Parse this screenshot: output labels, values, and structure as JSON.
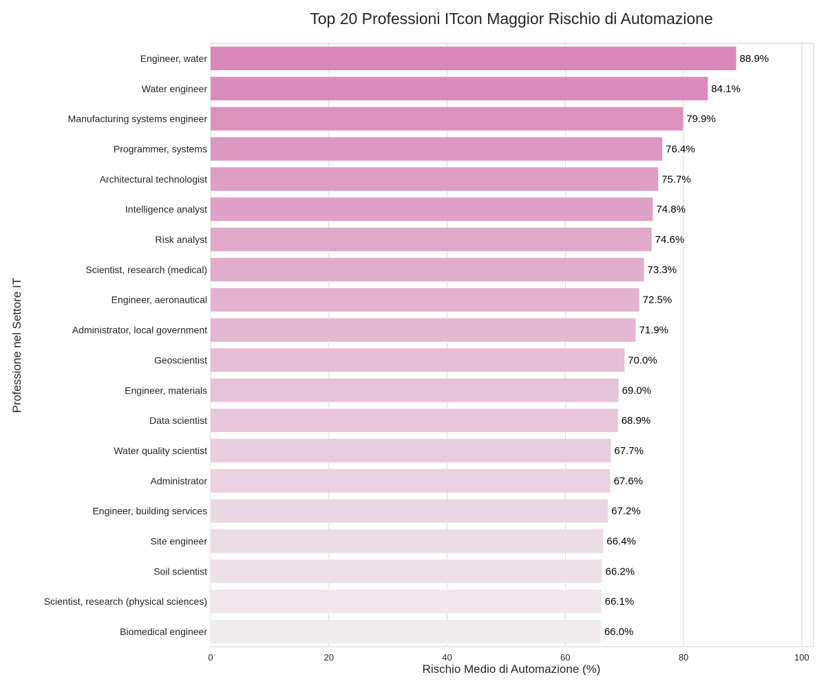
{
  "chart_data": {
    "type": "bar",
    "orientation": "horizontal",
    "title": "Top 20 Professioni ITcon Maggior Rischio di Automazione",
    "xlabel": "Rischio Medio di Automazione (%)",
    "ylabel": "Professione nel Settore IT",
    "xlim": [
      0,
      102
    ],
    "xticks": [
      "0",
      "20",
      "40",
      "60",
      "80",
      "100"
    ],
    "grid": true,
    "categories": [
      "Engineer, water",
      "Water engineer",
      "Manufacturing systems engineer",
      "Programmer, systems",
      "Architectural technologist",
      "Intelligence analyst",
      "Risk analyst",
      "Scientist, research (medical)",
      "Engineer, aeronautical",
      "Administrator, local government",
      "Geoscientist",
      "Engineer, materials",
      "Data scientist",
      "Water quality scientist",
      "Administrator",
      "Engineer, building services",
      "Site engineer",
      "Soil scientist",
      "Scientist, research (physical sciences)",
      "Biomedical engineer"
    ],
    "values": [
      88.9,
      84.1,
      79.9,
      76.4,
      75.7,
      74.8,
      74.6,
      73.3,
      72.5,
      71.9,
      70.0,
      69.0,
      68.9,
      67.7,
      67.6,
      67.2,
      66.4,
      66.2,
      66.1,
      66.0
    ],
    "data_labels": [
      "88.9%",
      "84.1%",
      "79.9%",
      "76.4%",
      "75.7%",
      "74.8%",
      "74.6%",
      "73.3%",
      "72.5%",
      "71.9%",
      "70.0%",
      "69.0%",
      "68.9%",
      "67.7%",
      "67.6%",
      "67.2%",
      "66.4%",
      "66.2%",
      "66.1%",
      "66.0%"
    ],
    "colors": {
      "top": "#d988b8",
      "bottom": "#f0ecee"
    }
  }
}
